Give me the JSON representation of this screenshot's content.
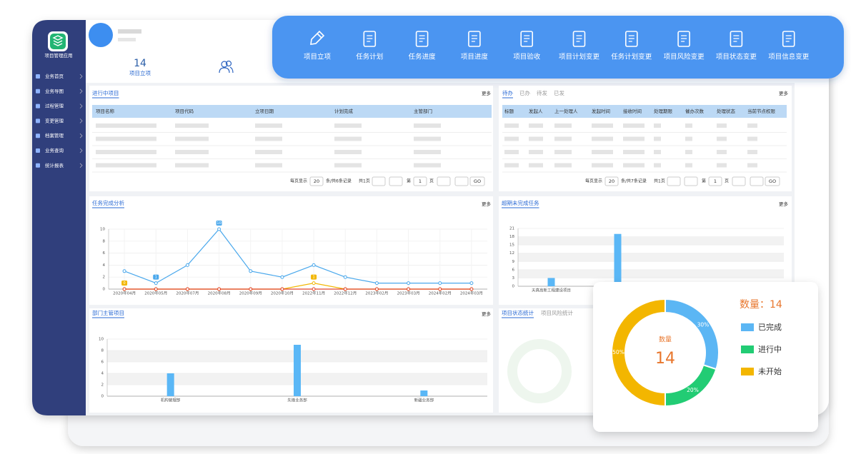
{
  "sidebar": {
    "app_name": "项目管理应用",
    "menu": [
      "业务首页",
      "业务导图",
      "过程管理",
      "变更管理",
      "档案管理",
      "业务查询",
      "统计报表"
    ]
  },
  "header": {
    "count": 14,
    "count_label": "项目立项"
  },
  "toolbar": [
    "项目立项",
    "任务计划",
    "任务进度",
    "项目进度",
    "项目验收",
    "项目计划变更",
    "任务计划变更",
    "项目风险变更",
    "项目状态变更",
    "项目信息变更"
  ],
  "projects_panel": {
    "title": "进行中项目",
    "more": "更多",
    "columns": [
      "项目名称",
      "项目代码",
      "立项日期",
      "计划完成",
      "主管部门"
    ],
    "pagination": {
      "per_page_label": "每页显示",
      "per_page": 20,
      "summary": "条/共6条记录",
      "pages": "共1页",
      "page_prefix": "第",
      "page": 1,
      "page_suffix": "页",
      "go": "GO"
    }
  },
  "todo_panel": {
    "tabs": [
      "待办",
      "已办",
      "待发",
      "已发"
    ],
    "more": "更多",
    "columns": [
      "标题",
      "发起人",
      "上一处理人",
      "发起时间",
      "接收时间",
      "处理期限",
      "催办次数",
      "处理状态",
      "当前节点权限"
    ],
    "pagination": {
      "per_page_label": "每页显示",
      "per_page": 20,
      "summary": "条/共7条记录",
      "pages": "共1页",
      "page_prefix": "第",
      "page": 1,
      "page_suffix": "页",
      "go": "GO"
    }
  },
  "status_panel": {
    "tabs": [
      "项目状态统计",
      "项目风险统计"
    ]
  },
  "chart_data": [
    {
      "type": "line",
      "title": "任务完成分析",
      "more": "更多",
      "categories": [
        "2020年04月",
        "2020年05月",
        "2020年07月",
        "2020年08月",
        "2020年09月",
        "2020年10月",
        "2022年11月",
        "2022年12月",
        "2023年02月",
        "2023年03月",
        "2024年02月",
        "2024年03月"
      ],
      "series": [
        {
          "color": "#4aa8ec",
          "values": [
            3,
            1,
            4,
            10,
            3,
            2,
            4,
            2,
            1,
            1,
            1,
            1
          ],
          "label_indices": [
            1,
            3
          ]
        },
        {
          "color": "#f2b705",
          "values": [
            0,
            0,
            0,
            0,
            0,
            0,
            1,
            0,
            0,
            0,
            0,
            0
          ],
          "label_indices": [
            0,
            6
          ]
        },
        {
          "color": "#e0412a",
          "values": [
            0,
            0,
            0,
            0,
            0,
            0,
            0,
            0,
            0,
            0,
            0,
            0
          ],
          "label_indices": []
        }
      ],
      "ylim": [
        0,
        10
      ],
      "yticks": [
        0,
        2,
        4,
        6,
        8,
        10
      ],
      "grid": true
    },
    {
      "type": "bar",
      "title": "超期未完成任务",
      "more": "更多",
      "categories": [
        "天真高新工程建设项目",
        null
      ],
      "values": [
        3,
        19
      ],
      "color": "#5ab7f6",
      "ylim": [
        0,
        21
      ],
      "yticks": [
        0,
        3,
        6,
        9,
        12,
        15,
        18,
        21
      ],
      "grid": true
    },
    {
      "type": "bar",
      "title": "部门主管项目",
      "more": "更多",
      "categories": [
        "机构管理部",
        "先锋业务部",
        "新疆业务部"
      ],
      "values": [
        4,
        9,
        1
      ],
      "color": "#5ab7f6",
      "ylim": [
        0,
        10
      ],
      "yticks": [
        0,
        2,
        4,
        6,
        8,
        10
      ],
      "grid": true
    },
    {
      "type": "pie",
      "title": "数量：14",
      "center_label": "数量",
      "center_value": 14,
      "categories": [
        "已完成",
        "进行中",
        "未开始"
      ],
      "values": [
        30,
        20,
        50
      ],
      "value_labels": [
        "30%",
        "20%",
        "50%"
      ],
      "colors": [
        "#5bb6f4",
        "#22cc74",
        "#f3b600"
      ]
    }
  ]
}
